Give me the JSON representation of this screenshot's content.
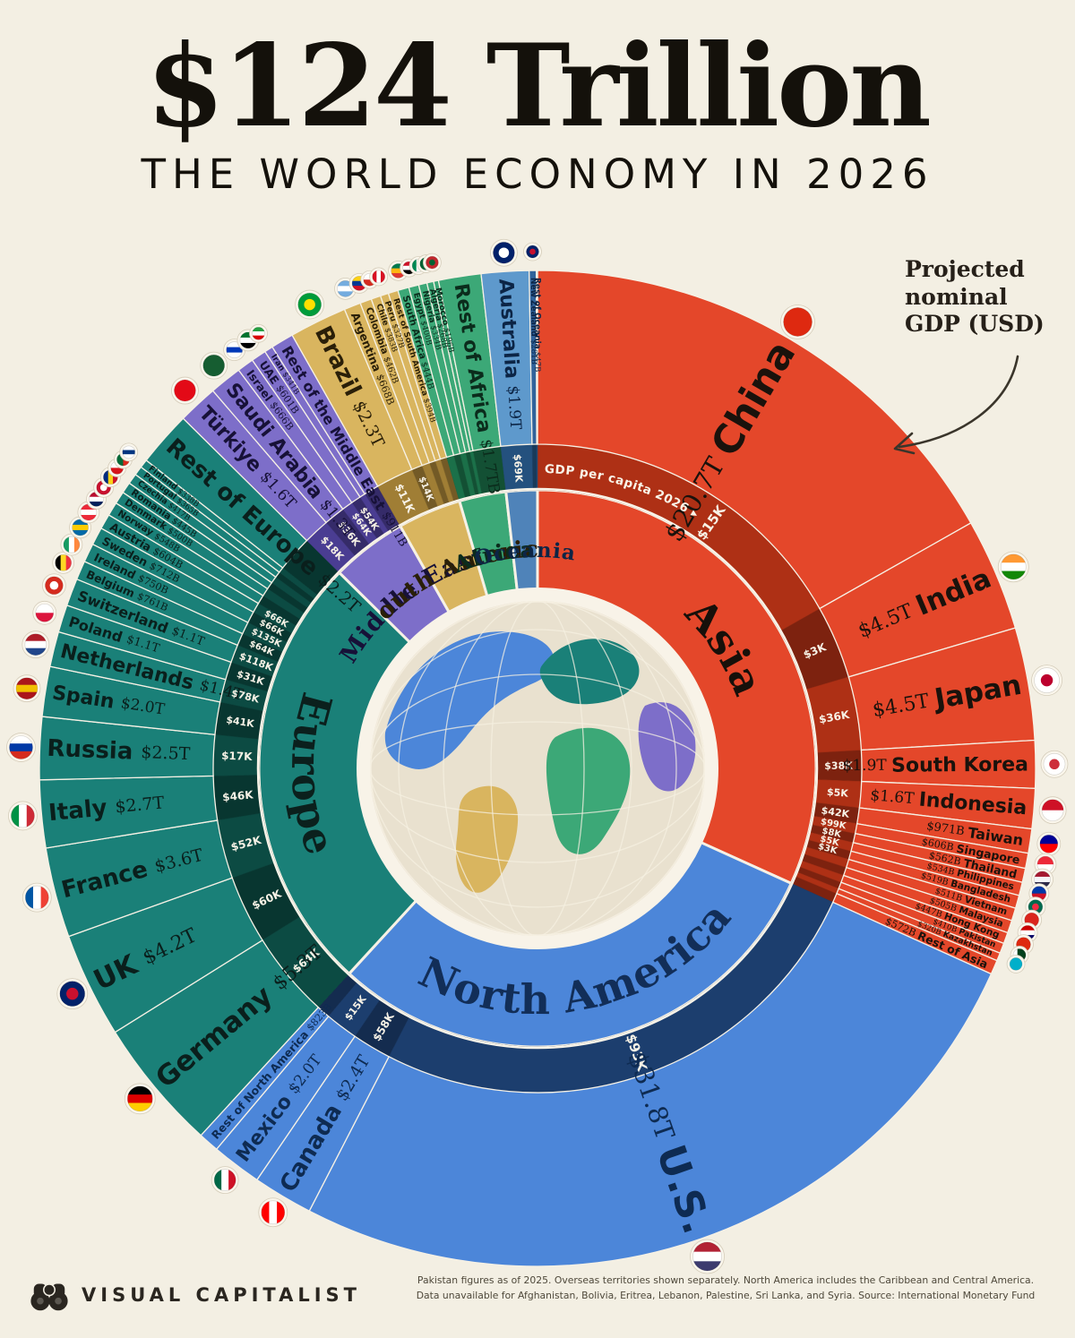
{
  "header": {
    "title": "$124 Trillion",
    "subtitle": "THE WORLD ECONOMY IN 2026"
  },
  "annotation": {
    "lines": [
      "Projected",
      "nominal",
      "GDP (USD)"
    ]
  },
  "footer": {
    "brand": "VISUAL CAPITALIST",
    "note_line1": "Pakistan figures as of 2025. Overseas territories shown separately. North America includes the Caribbean and Central America.",
    "note_line2": "Data unavailable for Afghanistan, Bolivia, Eritrea, Lebanon, Palestine, Sri Lanka, and Syria. Source: International Monetary Fund"
  },
  "chart_data": {
    "type": "sunburst-radial",
    "title": "$124 Trillion",
    "subtitle": "The World Economy in 2026",
    "units": "Projected nominal GDP (USD), trillions",
    "total_label": "$124 Trillion",
    "ring_label": "GDP per capita 2026 ▸",
    "start_angle_deg": 0,
    "background": "#F3EFE3",
    "continents": [
      {
        "name": "Asia",
        "color": "#E4472A",
        "dark": "#AE3015",
        "text": "#1A120C",
        "label_color": "#17100A",
        "countries": [
          {
            "name": "China",
            "gdp": "$20.7T",
            "t": 20.7,
            "pc": "$15K",
            "pc_shift": 5,
            "flag": {
              "type": "solid",
              "colors": [
                "#DE2910"
              ]
            }
          },
          {
            "name": "India",
            "gdp": "$4.5T",
            "t": 4.5,
            "pc": "$3K",
            "flag": {
              "type": "h",
              "colors": [
                "#FF9933",
                "#FFFFFF",
                "#138808"
              ]
            }
          },
          {
            "name": "Japan",
            "gdp": "$4.5T",
            "t": 4.5,
            "pc": "$36K",
            "flag": {
              "type": "dot",
              "colors": [
                "#FFFFFF",
                "#BC002D"
              ]
            }
          },
          {
            "name": "South Korea",
            "gdp": "$1.9T",
            "t": 1.9,
            "pc": "$38K",
            "flag": {
              "type": "dot",
              "colors": [
                "#FFFFFF",
                "#CD2E3A"
              ]
            }
          },
          {
            "name": "Indonesia",
            "gdp": "$1.6T",
            "t": 1.6,
            "pc": "$5K",
            "flag": {
              "type": "h",
              "colors": [
                "#CE1126",
                "#FFFFFF"
              ]
            }
          },
          {
            "name": "Taiwan",
            "gdp": "$971B",
            "t": 0.971,
            "pc": "$42K",
            "flag": {
              "type": "h",
              "colors": [
                "#000095",
                "#FE0000"
              ]
            }
          },
          {
            "name": "Singapore",
            "gdp": "$606B",
            "t": 0.606,
            "pc": "$99K",
            "flag": {
              "type": "h",
              "colors": [
                "#ED2939",
                "#FFFFFF"
              ]
            }
          },
          {
            "name": "Thailand",
            "gdp": "$562B",
            "t": 0.562,
            "pc": "$8K",
            "flag": {
              "type": "h",
              "colors": [
                "#A51931",
                "#F4F5F8",
                "#2D2A4A"
              ]
            }
          },
          {
            "name": "Philippines",
            "gdp": "$534B",
            "t": 0.534,
            "pc": "$5K",
            "flag": {
              "type": "h",
              "colors": [
                "#0038A8",
                "#CE1126"
              ]
            }
          },
          {
            "name": "Bangladesh",
            "gdp": "$519B",
            "t": 0.519,
            "pc": "$3K",
            "flag": {
              "type": "dot",
              "colors": [
                "#006A4E",
                "#F42A41"
              ]
            }
          },
          {
            "name": "Vietnam",
            "gdp": "$511B",
            "t": 0.511,
            "pc": null,
            "flag": {
              "type": "solid",
              "colors": [
                "#DA251D"
              ]
            }
          },
          {
            "name": "Malaysia",
            "gdp": "$505B",
            "t": 0.505,
            "pc": null,
            "flag": {
              "type": "h",
              "colors": [
                "#CC0001",
                "#FFFFFF",
                "#010066"
              ]
            }
          },
          {
            "name": "Hong Kong",
            "gdp": "$447B",
            "t": 0.447,
            "pc": null,
            "flag": {
              "type": "solid",
              "colors": [
                "#DE2910"
              ]
            }
          },
          {
            "name": "Pakistan",
            "gdp": "$410B",
            "t": 0.41,
            "pc": null,
            "flag": {
              "type": "v",
              "colors": [
                "#FFFFFF",
                "#01411C",
                "#01411C"
              ]
            }
          },
          {
            "name": "Kazakhstan",
            "gdp": "$320B",
            "t": 0.32,
            "pc": null,
            "flag": {
              "type": "solid",
              "colors": [
                "#00AFCA"
              ]
            }
          },
          {
            "name": "Rest of Asia",
            "gdp": "$572B",
            "t": 0.572,
            "pc": null,
            "flag": null
          }
        ]
      },
      {
        "name": "North America",
        "color": "#4C86D9",
        "dark": "#1C3E6E",
        "text": "#0E2B52",
        "label_color": "#122E58",
        "countries": [
          {
            "name": "U.S.",
            "gdp": "$31.8T",
            "t": 31.8,
            "pc": "$93K",
            "flag": {
              "type": "h",
              "colors": [
                "#B22234",
                "#FFFFFF",
                "#3C3B6E"
              ]
            }
          },
          {
            "name": "Canada",
            "gdp": "$2.4T",
            "t": 2.4,
            "pc": "$58K",
            "flag": {
              "type": "v",
              "colors": [
                "#FF0000",
                "#FFFFFF",
                "#FF0000"
              ]
            }
          },
          {
            "name": "Mexico",
            "gdp": "$2.0T",
            "t": 2.0,
            "pc": "$15K",
            "flag": {
              "type": "v",
              "colors": [
                "#006847",
                "#FFFFFF",
                "#CE1126"
              ]
            }
          },
          {
            "name": "Rest of North America",
            "gdp": "$823B",
            "t": 0.823,
            "pc": null,
            "flag": null
          }
        ]
      },
      {
        "name": "Europe",
        "color": "#1A8078",
        "dark": "#0C4B43",
        "text": "#0A1F1C",
        "label_color": "#0B201D",
        "countries": [
          {
            "name": "Germany",
            "gdp": "$5.3T",
            "t": 5.3,
            "pc": "$64K",
            "flag": {
              "type": "h",
              "colors": [
                "#000000",
                "#DD0000",
                "#FFCE00"
              ]
            }
          },
          {
            "name": "UK",
            "gdp": "$4.2T",
            "t": 4.2,
            "pc": "$60K",
            "flag": {
              "type": "dot",
              "colors": [
                "#012169",
                "#C8102E"
              ]
            }
          },
          {
            "name": "France",
            "gdp": "$3.6T",
            "t": 3.6,
            "pc": "$52K",
            "flag": {
              "type": "v",
              "colors": [
                "#0055A4",
                "#FFFFFF",
                "#EF4135"
              ]
            }
          },
          {
            "name": "Italy",
            "gdp": "$2.7T",
            "t": 2.7,
            "pc": "$46K",
            "flag": {
              "type": "v",
              "colors": [
                "#009246",
                "#FFFFFF",
                "#CE2B37"
              ]
            }
          },
          {
            "name": "Russia",
            "gdp": "$2.5T",
            "t": 2.5,
            "pc": "$17K",
            "flag": {
              "type": "h",
              "colors": [
                "#FFFFFF",
                "#0039A6",
                "#D52B1E"
              ]
            }
          },
          {
            "name": "Spain",
            "gdp": "$2.0T",
            "t": 2.0,
            "pc": "$41K",
            "flag": {
              "type": "h",
              "colors": [
                "#AA151B",
                "#F1BF00",
                "#AA151B"
              ]
            }
          },
          {
            "name": "Netherlands",
            "gdp": "$1.4T",
            "t": 1.4,
            "pc": "$78K",
            "flag": {
              "type": "h",
              "colors": [
                "#AE1C28",
                "#FFFFFF",
                "#21468B"
              ]
            }
          },
          {
            "name": "Poland",
            "gdp": "$1.1T",
            "t": 1.1,
            "pc": "$31K",
            "flag": {
              "type": "h",
              "colors": [
                "#FFFFFF",
                "#DC143C"
              ]
            }
          },
          {
            "name": "Switzerland",
            "gdp": "$1.1T",
            "t": 1.1,
            "pc": "$118K",
            "flag": {
              "type": "dot",
              "colors": [
                "#D52B1E",
                "#FFFFFF"
              ]
            }
          },
          {
            "name": "Belgium",
            "gdp": "$761B",
            "t": 0.761,
            "pc": "$64K",
            "flag": {
              "type": "v",
              "colors": [
                "#000000",
                "#FDDA24",
                "#EF3340"
              ]
            }
          },
          {
            "name": "Ireland",
            "gdp": "$750B",
            "t": 0.75,
            "pc": "$135K",
            "flag": {
              "type": "v",
              "colors": [
                "#169B62",
                "#FFFFFF",
                "#FF883E"
              ]
            }
          },
          {
            "name": "Sweden",
            "gdp": "$712B",
            "t": 0.712,
            "pc": "$66K",
            "flag": {
              "type": "h",
              "colors": [
                "#006AA7",
                "#FECC00",
                "#006AA7"
              ]
            }
          },
          {
            "name": "Austria",
            "gdp": "$604B",
            "t": 0.604,
            "pc": "$66K",
            "flag": {
              "type": "h",
              "colors": [
                "#ED2939",
                "#FFFFFF",
                "#ED2939"
              ]
            }
          },
          {
            "name": "Norway",
            "gdp": "$548B",
            "t": 0.548,
            "pc": null,
            "flag": {
              "type": "h",
              "colors": [
                "#BA0C2F",
                "#FFFFFF",
                "#00205B"
              ]
            }
          },
          {
            "name": "Denmark",
            "gdp": "$500B",
            "t": 0.5,
            "pc": null,
            "flag": {
              "type": "dot",
              "colors": [
                "#C8102E",
                "#FFFFFF"
              ]
            }
          },
          {
            "name": "Romania",
            "gdp": "$445B",
            "t": 0.445,
            "pc": null,
            "flag": {
              "type": "v",
              "colors": [
                "#002B7F",
                "#FCD116",
                "#CE1126"
              ]
            }
          },
          {
            "name": "Czechia",
            "gdp": "$417B",
            "t": 0.417,
            "pc": null,
            "flag": {
              "type": "h",
              "colors": [
                "#FFFFFF",
                "#D7141A"
              ]
            }
          },
          {
            "name": "Portugal",
            "gdp": "$365B",
            "t": 0.365,
            "pc": null,
            "flag": {
              "type": "v",
              "colors": [
                "#046A38",
                "#DA291C"
              ]
            }
          },
          {
            "name": "Finland",
            "gdp": "$338B",
            "t": 0.338,
            "pc": null,
            "flag": {
              "type": "h",
              "colors": [
                "#FFFFFF",
                "#003580",
                "#FFFFFF"
              ]
            }
          },
          {
            "name": "Rest of Europe",
            "gdp": "$2.2T",
            "t": 2.2,
            "pc": null,
            "flag": null
          }
        ]
      },
      {
        "name": "Middle East",
        "color": "#7D6EC9",
        "dark": "#4A3D92",
        "text": "#171138",
        "label_color": "#171138",
        "countries": [
          {
            "name": "Türkiye",
            "gdp": "$1.6T",
            "t": 1.6,
            "pc": "$18K",
            "flag": {
              "type": "solid",
              "colors": [
                "#E30A17"
              ]
            }
          },
          {
            "name": "Saudi Arabia",
            "gdp": "$1.3T",
            "t": 1.3,
            "pc": "$36K",
            "flag": {
              "type": "solid",
              "colors": [
                "#165D31"
              ]
            }
          },
          {
            "name": "Israel",
            "gdp": "$666B",
            "t": 0.666,
            "pc": "$64K",
            "flag": {
              "type": "h",
              "colors": [
                "#FFFFFF",
                "#0038B8",
                "#FFFFFF"
              ]
            }
          },
          {
            "name": "UAE",
            "gdp": "$601B",
            "t": 0.601,
            "pc": "$54K",
            "flag": {
              "type": "h",
              "colors": [
                "#00732F",
                "#FFFFFF",
                "#000000"
              ]
            }
          },
          {
            "name": "Iran",
            "gdp": "$341B",
            "t": 0.341,
            "pc": null,
            "flag": {
              "type": "h",
              "colors": [
                "#239F40",
                "#FFFFFF",
                "#DA0000"
              ]
            }
          },
          {
            "name": "Rest of the Middle East",
            "gdp": "$911B",
            "t": 0.911,
            "pc": null,
            "flag": null
          }
        ]
      },
      {
        "name": "South America",
        "color": "#D9B55F",
        "dark": "#A07E35",
        "text": "#2A1F08",
        "label_color": "#2A1F08",
        "countries": [
          {
            "name": "Brazil",
            "gdp": "$2.3T",
            "t": 2.3,
            "pc": "$11K",
            "flag": {
              "type": "dot",
              "colors": [
                "#009B3A",
                "#FEDF00"
              ]
            }
          },
          {
            "name": "Argentina",
            "gdp": "$668B",
            "t": 0.668,
            "pc": "$14K",
            "flag": {
              "type": "h",
              "colors": [
                "#74ACDF",
                "#FFFFFF",
                "#74ACDF"
              ]
            }
          },
          {
            "name": "Colombia",
            "gdp": "$462B",
            "t": 0.462,
            "pc": null,
            "flag": {
              "type": "h",
              "colors": [
                "#FCD116",
                "#003893",
                "#CE1126"
              ]
            }
          },
          {
            "name": "Chile",
            "gdp": "$383B",
            "t": 0.383,
            "pc": null,
            "flag": {
              "type": "h",
              "colors": [
                "#FFFFFF",
                "#D52B1E"
              ]
            }
          },
          {
            "name": "Peru",
            "gdp": "$327B",
            "t": 0.327,
            "pc": null,
            "flag": {
              "type": "v",
              "colors": [
                "#D91023",
                "#FFFFFF",
                "#D91023"
              ]
            }
          },
          {
            "name": "Rest of South America",
            "gdp": "$394B",
            "t": 0.394,
            "pc": null,
            "flag": null
          }
        ]
      },
      {
        "name": "Africa",
        "color": "#3CA877",
        "dark": "#1B7049",
        "text": "#0B2C1C",
        "label_color": "#0B2C1C",
        "countries": [
          {
            "name": "South Africa",
            "gdp": "$444B",
            "t": 0.444,
            "pc": null,
            "flag": {
              "type": "h",
              "colors": [
                "#007A4D",
                "#FFB612",
                "#DE3831"
              ]
            }
          },
          {
            "name": "Egypt",
            "gdp": "$400B",
            "t": 0.4,
            "pc": null,
            "flag": {
              "type": "h",
              "colors": [
                "#CE1126",
                "#FFFFFF",
                "#000000"
              ]
            }
          },
          {
            "name": "Nigeria",
            "gdp": "$334B",
            "t": 0.334,
            "pc": null,
            "flag": {
              "type": "v",
              "colors": [
                "#008751",
                "#FFFFFF",
                "#008751"
              ]
            }
          },
          {
            "name": "Algeria",
            "gdp": "$268B",
            "t": 0.268,
            "pc": null,
            "flag": {
              "type": "v",
              "colors": [
                "#006233",
                "#FFFFFF"
              ]
            }
          },
          {
            "name": "Morocco",
            "gdp": "$196B",
            "t": 0.196,
            "pc": null,
            "flag": {
              "type": "dot",
              "colors": [
                "#C1272D",
                "#006233"
              ]
            }
          },
          {
            "name": "Rest of Africa",
            "gdp": "$1.7TB",
            "t": 1.7,
            "pc": null,
            "flag": null
          }
        ]
      },
      {
        "name": "Oceania",
        "color": "#4F83B9",
        "dark": "#24517E",
        "text": "#0C2546",
        "label_color": "#0C2546",
        "countries": [
          {
            "name": "Australia",
            "gdp": "$1.9T",
            "t": 1.9,
            "pc": "$69K",
            "shade": "#5E99CC",
            "flag": {
              "type": "dot",
              "colors": [
                "#012169",
                "#FFFFFF"
              ]
            }
          },
          {
            "name": "New Zealand",
            "gdp": "$281B",
            "t": 0.281,
            "pc": null,
            "shade": "#31639B",
            "flag": {
              "type": "dot",
              "colors": [
                "#012169",
                "#C8102E"
              ]
            }
          },
          {
            "name": "Rest of Oceania",
            "gdp": "$47B",
            "t": 0.047,
            "pc": null,
            "shade": "#1D4878",
            "flag": null
          }
        ]
      }
    ]
  }
}
